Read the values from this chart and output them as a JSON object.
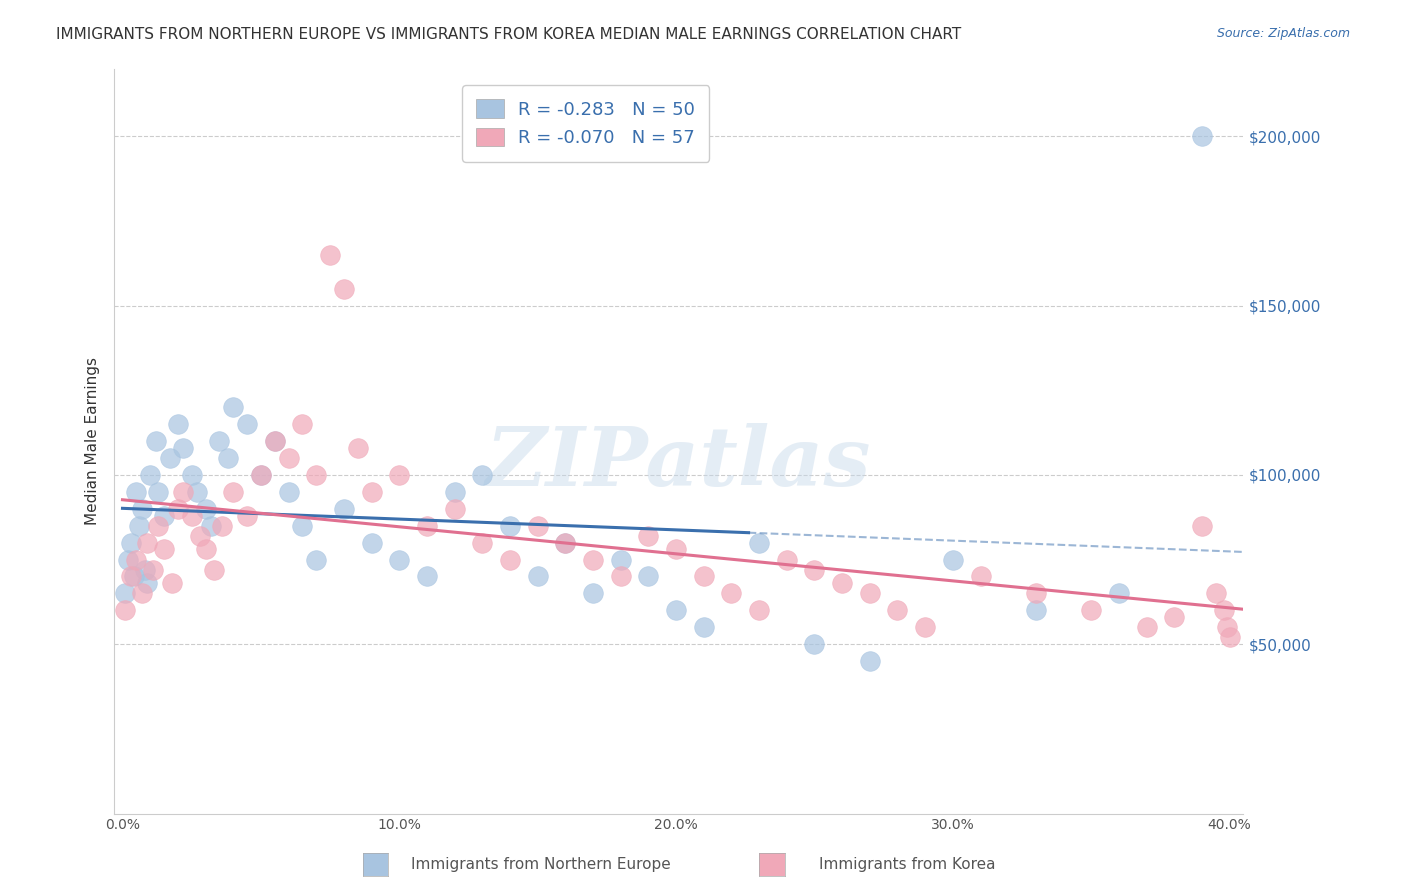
{
  "title": "IMMIGRANTS FROM NORTHERN EUROPE VS IMMIGRANTS FROM KOREA MEDIAN MALE EARNINGS CORRELATION CHART",
  "source": "Source: ZipAtlas.com",
  "ylabel": "Median Male Earnings",
  "r_blue": -0.283,
  "n_blue": 50,
  "r_pink": -0.07,
  "n_pink": 57,
  "blue_color": "#a8c4e0",
  "blue_line_color": "#3a6fad",
  "pink_color": "#f0a8b8",
  "pink_line_color": "#e07090",
  "watermark": "ZIPatlas",
  "yticks": [
    0,
    50000,
    100000,
    150000,
    200000
  ],
  "ytick_labels": [
    "",
    "$50,000",
    "$100,000",
    "$150,000",
    "$200,000"
  ],
  "xlim": [
    0.0,
    0.4
  ],
  "ylim": [
    0,
    220000
  ],
  "blue_x": [
    0.001,
    0.002,
    0.003,
    0.004,
    0.005,
    0.006,
    0.007,
    0.008,
    0.009,
    0.01,
    0.012,
    0.013,
    0.015,
    0.017,
    0.02,
    0.022,
    0.025,
    0.027,
    0.03,
    0.032,
    0.035,
    0.038,
    0.04,
    0.045,
    0.05,
    0.055,
    0.06,
    0.065,
    0.07,
    0.08,
    0.09,
    0.1,
    0.11,
    0.12,
    0.13,
    0.14,
    0.15,
    0.16,
    0.17,
    0.18,
    0.19,
    0.2,
    0.21,
    0.23,
    0.25,
    0.27,
    0.3,
    0.33,
    0.36,
    0.39
  ],
  "blue_y": [
    65000,
    75000,
    80000,
    70000,
    95000,
    85000,
    90000,
    72000,
    68000,
    100000,
    110000,
    95000,
    88000,
    105000,
    115000,
    108000,
    100000,
    95000,
    90000,
    85000,
    110000,
    105000,
    120000,
    115000,
    100000,
    110000,
    95000,
    85000,
    75000,
    90000,
    80000,
    75000,
    70000,
    95000,
    100000,
    85000,
    70000,
    80000,
    65000,
    75000,
    70000,
    60000,
    55000,
    80000,
    50000,
    45000,
    75000,
    60000,
    65000,
    200000
  ],
  "pink_x": [
    0.001,
    0.003,
    0.005,
    0.007,
    0.009,
    0.011,
    0.013,
    0.015,
    0.018,
    0.02,
    0.022,
    0.025,
    0.028,
    0.03,
    0.033,
    0.036,
    0.04,
    0.045,
    0.05,
    0.055,
    0.06,
    0.065,
    0.07,
    0.075,
    0.08,
    0.085,
    0.09,
    0.1,
    0.11,
    0.12,
    0.13,
    0.14,
    0.15,
    0.16,
    0.17,
    0.18,
    0.19,
    0.2,
    0.21,
    0.22,
    0.23,
    0.24,
    0.25,
    0.26,
    0.27,
    0.28,
    0.29,
    0.31,
    0.33,
    0.35,
    0.37,
    0.38,
    0.39,
    0.395,
    0.398,
    0.399,
    0.4
  ],
  "pink_y": [
    60000,
    70000,
    75000,
    65000,
    80000,
    72000,
    85000,
    78000,
    68000,
    90000,
    95000,
    88000,
    82000,
    78000,
    72000,
    85000,
    95000,
    88000,
    100000,
    110000,
    105000,
    115000,
    100000,
    165000,
    155000,
    108000,
    95000,
    100000,
    85000,
    90000,
    80000,
    75000,
    85000,
    80000,
    75000,
    70000,
    82000,
    78000,
    70000,
    65000,
    60000,
    75000,
    72000,
    68000,
    65000,
    60000,
    55000,
    70000,
    65000,
    60000,
    55000,
    58000,
    85000,
    65000,
    60000,
    55000,
    52000
  ]
}
